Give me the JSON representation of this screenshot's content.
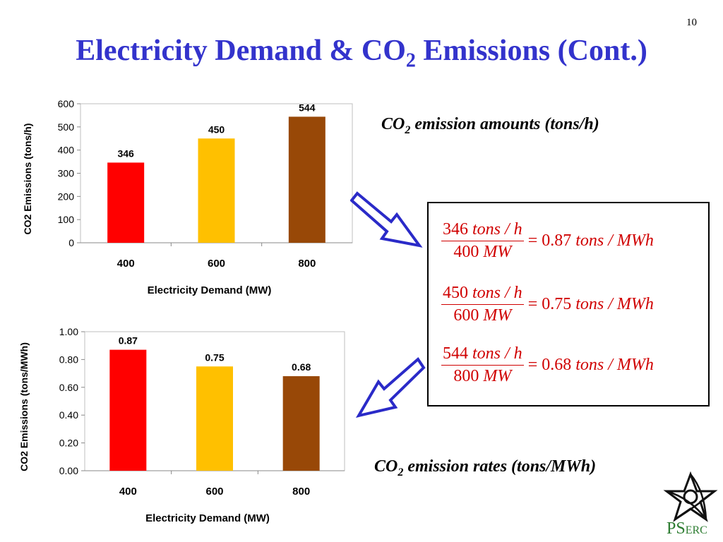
{
  "slide": {
    "number": "10",
    "title_pre": "Electricity Demand & CO",
    "title_sub": "2",
    "title_post": " Emissions (Cont.)"
  },
  "chart_data": [
    {
      "type": "bar",
      "categories": [
        "400",
        "600",
        "800"
      ],
      "values": [
        346,
        450,
        544
      ],
      "value_labels": [
        "346",
        "450",
        "544"
      ],
      "colors": [
        "#ff0000",
        "#ffc000",
        "#984807"
      ],
      "xlabel": "Electricity Demand (MW)",
      "ylabel": "CO2 Emissions  (tons/h)",
      "ylim": [
        0,
        600
      ],
      "yticks": [
        "0",
        "100",
        "200",
        "300",
        "400",
        "500",
        "600"
      ],
      "grid": false,
      "legend": "none"
    },
    {
      "type": "bar",
      "categories": [
        "400",
        "600",
        "800"
      ],
      "values": [
        0.87,
        0.75,
        0.68
      ],
      "value_labels": [
        "0.87",
        "0.75",
        "0.68"
      ],
      "colors": [
        "#ff0000",
        "#ffc000",
        "#984807"
      ],
      "xlabel": "Electricity Demand (MW)",
      "ylabel": "CO2 Emissions  (tons/MWh)",
      "ylim": [
        0,
        1.0
      ],
      "yticks": [
        "0.00",
        "0.20",
        "0.40",
        "0.60",
        "0.80",
        "1.00"
      ],
      "grid": false,
      "legend": "none"
    }
  ],
  "captions": {
    "amounts_pre": "CO",
    "amounts_sub": "2",
    "amounts_post": " emission amounts (tons/h)",
    "rates_pre": "CO",
    "rates_sub": "2",
    "rates_post": " emission rates (tons/MWh)"
  },
  "equations": [
    {
      "num_value": "346",
      "num_unit": "tons / h",
      "den_value": "400",
      "den_unit": "MW",
      "result": "= 0.87",
      "result_unit": "tons / MWh"
    },
    {
      "num_value": "450",
      "num_unit": "tons / h",
      "den_value": "600",
      "den_unit": "MW",
      "result": "= 0.75",
      "result_unit": "tons / MWh"
    },
    {
      "num_value": "544",
      "num_unit": "tons / h",
      "den_value": "800",
      "den_unit": "MW",
      "result": "= 0.68",
      "result_unit": "tons / MWh"
    }
  ],
  "logo": {
    "icon": "star-logo-icon",
    "text_big1": "PS",
    "text_small": "ERC"
  }
}
